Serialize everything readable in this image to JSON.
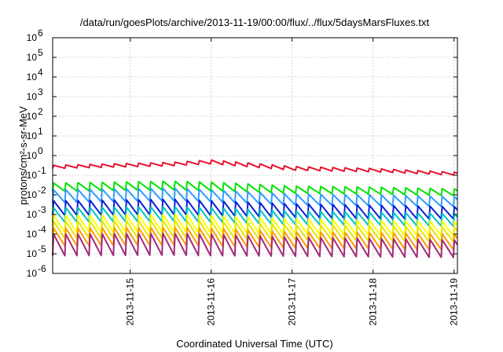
{
  "chart_data": {
    "type": "line",
    "title": "/data/run/goesPlots/archive/2013-11-19/00:00/flux/../flux/5daysMarsFluxes.txt",
    "xlabel": "Coordinated Universal Time (UTC)",
    "ylabel": "protons/cm²-s-sr-MeV",
    "x_scale": "time",
    "y_scale": "log",
    "xlim": [
      "2013-11-14T01:00",
      "2013-11-19T01:00"
    ],
    "ylim": [
      1e-06,
      1000000.0
    ],
    "grid": true,
    "legend": "none",
    "x_ticks": [
      "2013-11-15",
      "2013-11-16",
      "2013-11-17",
      "2013-11-18",
      "2013-11-19"
    ],
    "y_ticks": [
      {
        "value": 1e-06,
        "base": "10",
        "exp": "-6"
      },
      {
        "value": 1e-05,
        "base": "10",
        "exp": "-5"
      },
      {
        "value": 0.0001,
        "base": "10",
        "exp": "-4"
      },
      {
        "value": 0.001,
        "base": "10",
        "exp": "-3"
      },
      {
        "value": 0.01,
        "base": "10",
        "exp": "-2"
      },
      {
        "value": 0.1,
        "base": "10",
        "exp": "-1"
      },
      {
        "value": 1,
        "base": "10",
        "exp": "0"
      },
      {
        "value": 10,
        "base": "10",
        "exp": "1"
      },
      {
        "value": 100,
        "base": "10",
        "exp": "2"
      },
      {
        "value": 1000,
        "base": "10",
        "exp": "3"
      },
      {
        "value": 10000,
        "base": "10",
        "exp": "4"
      },
      {
        "value": 100000,
        "base": "10",
        "exp": "5"
      },
      {
        "value": 1000000,
        "base": "10",
        "exp": "6"
      }
    ],
    "series": [
      {
        "color": "#e8112d",
        "sawtooth_period_hours": 3.6,
        "envelope": [
          [
            "2013-11-14T01:00",
            0.32,
            0.22
          ],
          [
            "2013-11-15T12:00",
            0.45,
            0.3
          ],
          [
            "2013-11-16T00:00",
            0.6,
            0.38
          ],
          [
            "2013-11-17T00:00",
            0.28,
            0.18
          ],
          [
            "2013-11-18T00:00",
            0.22,
            0.15
          ],
          [
            "2013-11-19T01:00",
            0.14,
            0.1
          ]
        ]
      },
      {
        "color": "#00e400",
        "sawtooth_period_hours": 3.6,
        "envelope": [
          [
            "2013-11-14T01:00",
            0.04,
            0.015
          ],
          [
            "2013-11-15T12:00",
            0.05,
            0.018
          ],
          [
            "2013-11-16T00:00",
            0.045,
            0.016
          ],
          [
            "2013-11-17T00:00",
            0.028,
            0.012
          ],
          [
            "2013-11-18T00:00",
            0.025,
            0.011
          ],
          [
            "2013-11-19T01:00",
            0.02,
            0.009
          ]
        ]
      },
      {
        "color": "#2f9bff",
        "sawtooth_period_hours": 3.6,
        "envelope": [
          [
            "2013-11-14T01:00",
            0.018,
            0.004
          ],
          [
            "2013-11-15T12:00",
            0.022,
            0.005
          ],
          [
            "2013-11-16T00:00",
            0.018,
            0.0045
          ],
          [
            "2013-11-17T00:00",
            0.011,
            0.003
          ],
          [
            "2013-11-18T00:00",
            0.01,
            0.0028
          ],
          [
            "2013-11-19T01:00",
            0.008,
            0.0025
          ]
        ]
      },
      {
        "color": "#0a1fd6",
        "sawtooth_period_hours": 3.6,
        "envelope": [
          [
            "2013-11-14T01:00",
            0.005,
            0.0009
          ],
          [
            "2013-11-15T12:00",
            0.006,
            0.001
          ],
          [
            "2013-11-16T00:00",
            0.005,
            0.0009
          ],
          [
            "2013-11-17T00:00",
            0.0035,
            0.0007
          ],
          [
            "2013-11-18T00:00",
            0.003,
            0.0006
          ],
          [
            "2013-11-19T01:00",
            0.0025,
            0.0006
          ]
        ]
      },
      {
        "color": "#00c4c4",
        "sawtooth_period_hours": 3.6,
        "envelope": [
          [
            "2013-11-14T01:00",
            0.0022,
            0.0004
          ],
          [
            "2013-11-15T12:00",
            0.0025,
            0.00045
          ],
          [
            "2013-11-16T00:00",
            0.0022,
            0.0004
          ],
          [
            "2013-11-17T00:00",
            0.0015,
            0.0003
          ],
          [
            "2013-11-18T00:00",
            0.0013,
            0.00028
          ],
          [
            "2013-11-19T01:00",
            0.0011,
            0.00025
          ]
        ]
      },
      {
        "color": "#ffff00",
        "sawtooth_period_hours": 3.6,
        "envelope": [
          [
            "2013-11-14T01:00",
            0.0009,
            0.00012
          ],
          [
            "2013-11-15T12:00",
            0.001,
            0.00013
          ],
          [
            "2013-11-16T00:00",
            0.0009,
            0.00012
          ],
          [
            "2013-11-17T00:00",
            0.0006,
            0.0001
          ],
          [
            "2013-11-18T00:00",
            0.0005,
            9e-05
          ],
          [
            "2013-11-19T01:00",
            0.00045,
            8e-05
          ]
        ]
      },
      {
        "color": "#e6e600",
        "sawtooth_period_hours": 3.6,
        "envelope": [
          [
            "2013-11-14T01:00",
            0.00045,
            6e-05
          ],
          [
            "2013-11-15T12:00",
            0.0005,
            6.5e-05
          ],
          [
            "2013-11-16T00:00",
            0.00045,
            6e-05
          ],
          [
            "2013-11-17T00:00",
            0.0003,
            5e-05
          ],
          [
            "2013-11-18T00:00",
            0.00026,
            4.5e-05
          ],
          [
            "2013-11-19T01:00",
            0.00023,
            4e-05
          ]
        ]
      },
      {
        "color": "#ff9a00",
        "sawtooth_period_hours": 3.6,
        "envelope": [
          [
            "2013-11-14T01:00",
            0.0002,
            2.5e-05
          ],
          [
            "2013-11-15T12:00",
            0.00022,
            2.8e-05
          ],
          [
            "2013-11-16T00:00",
            0.0002,
            2.5e-05
          ],
          [
            "2013-11-17T00:00",
            0.00013,
            2e-05
          ],
          [
            "2013-11-18T00:00",
            0.00012,
            1.8e-05
          ],
          [
            "2013-11-19T01:00",
            0.0001,
            1.6e-05
          ]
        ]
      },
      {
        "color": "#a22a78",
        "sawtooth_period_hours": 3.6,
        "envelope": [
          [
            "2013-11-14T01:00",
            0.0001,
            8e-06
          ],
          [
            "2013-11-15T12:00",
            0.00011,
            8.5e-06
          ],
          [
            "2013-11-16T00:00",
            0.0001,
            8e-06
          ],
          [
            "2013-11-17T00:00",
            7e-05,
            7.5e-06
          ],
          [
            "2013-11-18T00:00",
            6e-05,
            7e-06
          ],
          [
            "2013-11-19T01:00",
            5e-05,
            6.5e-06
          ]
        ]
      }
    ]
  }
}
